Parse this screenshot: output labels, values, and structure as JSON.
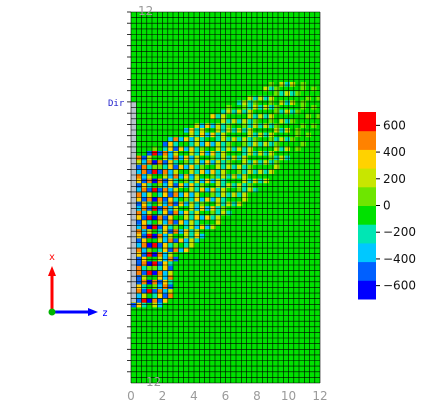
{
  "chart_data": {
    "type": "heatmap",
    "title": "",
    "xlabel": "",
    "ylabel": "",
    "xlim": [
      0,
      12
    ],
    "x_ticks": [
      "0",
      "2",
      "4",
      "6",
      "8",
      "10",
      "12"
    ],
    "top_tick_label": "12",
    "bottom_tick_label": "12",
    "mesh_label": "Dir",
    "colorbar": {
      "range": [
        -700,
        700
      ],
      "ticks": [
        "600",
        "400",
        "200",
        "0",
        "−200",
        "−400",
        "−600"
      ],
      "tick_values": [
        600,
        400,
        200,
        0,
        -200,
        -400,
        -600
      ],
      "colors": [
        "#0000ff",
        "#0060ff",
        "#00c8ff",
        "#00e6b4",
        "#00e100",
        "#6ee600",
        "#c8e600",
        "#ffd200",
        "#ff8200",
        "#ff0000"
      ]
    },
    "field_background_color": "#00e100",
    "grid": true
  },
  "axes_triad": {
    "x_label": "x",
    "z_label": "z",
    "x_color": "#ff0000",
    "z_color": "#0000ff"
  }
}
